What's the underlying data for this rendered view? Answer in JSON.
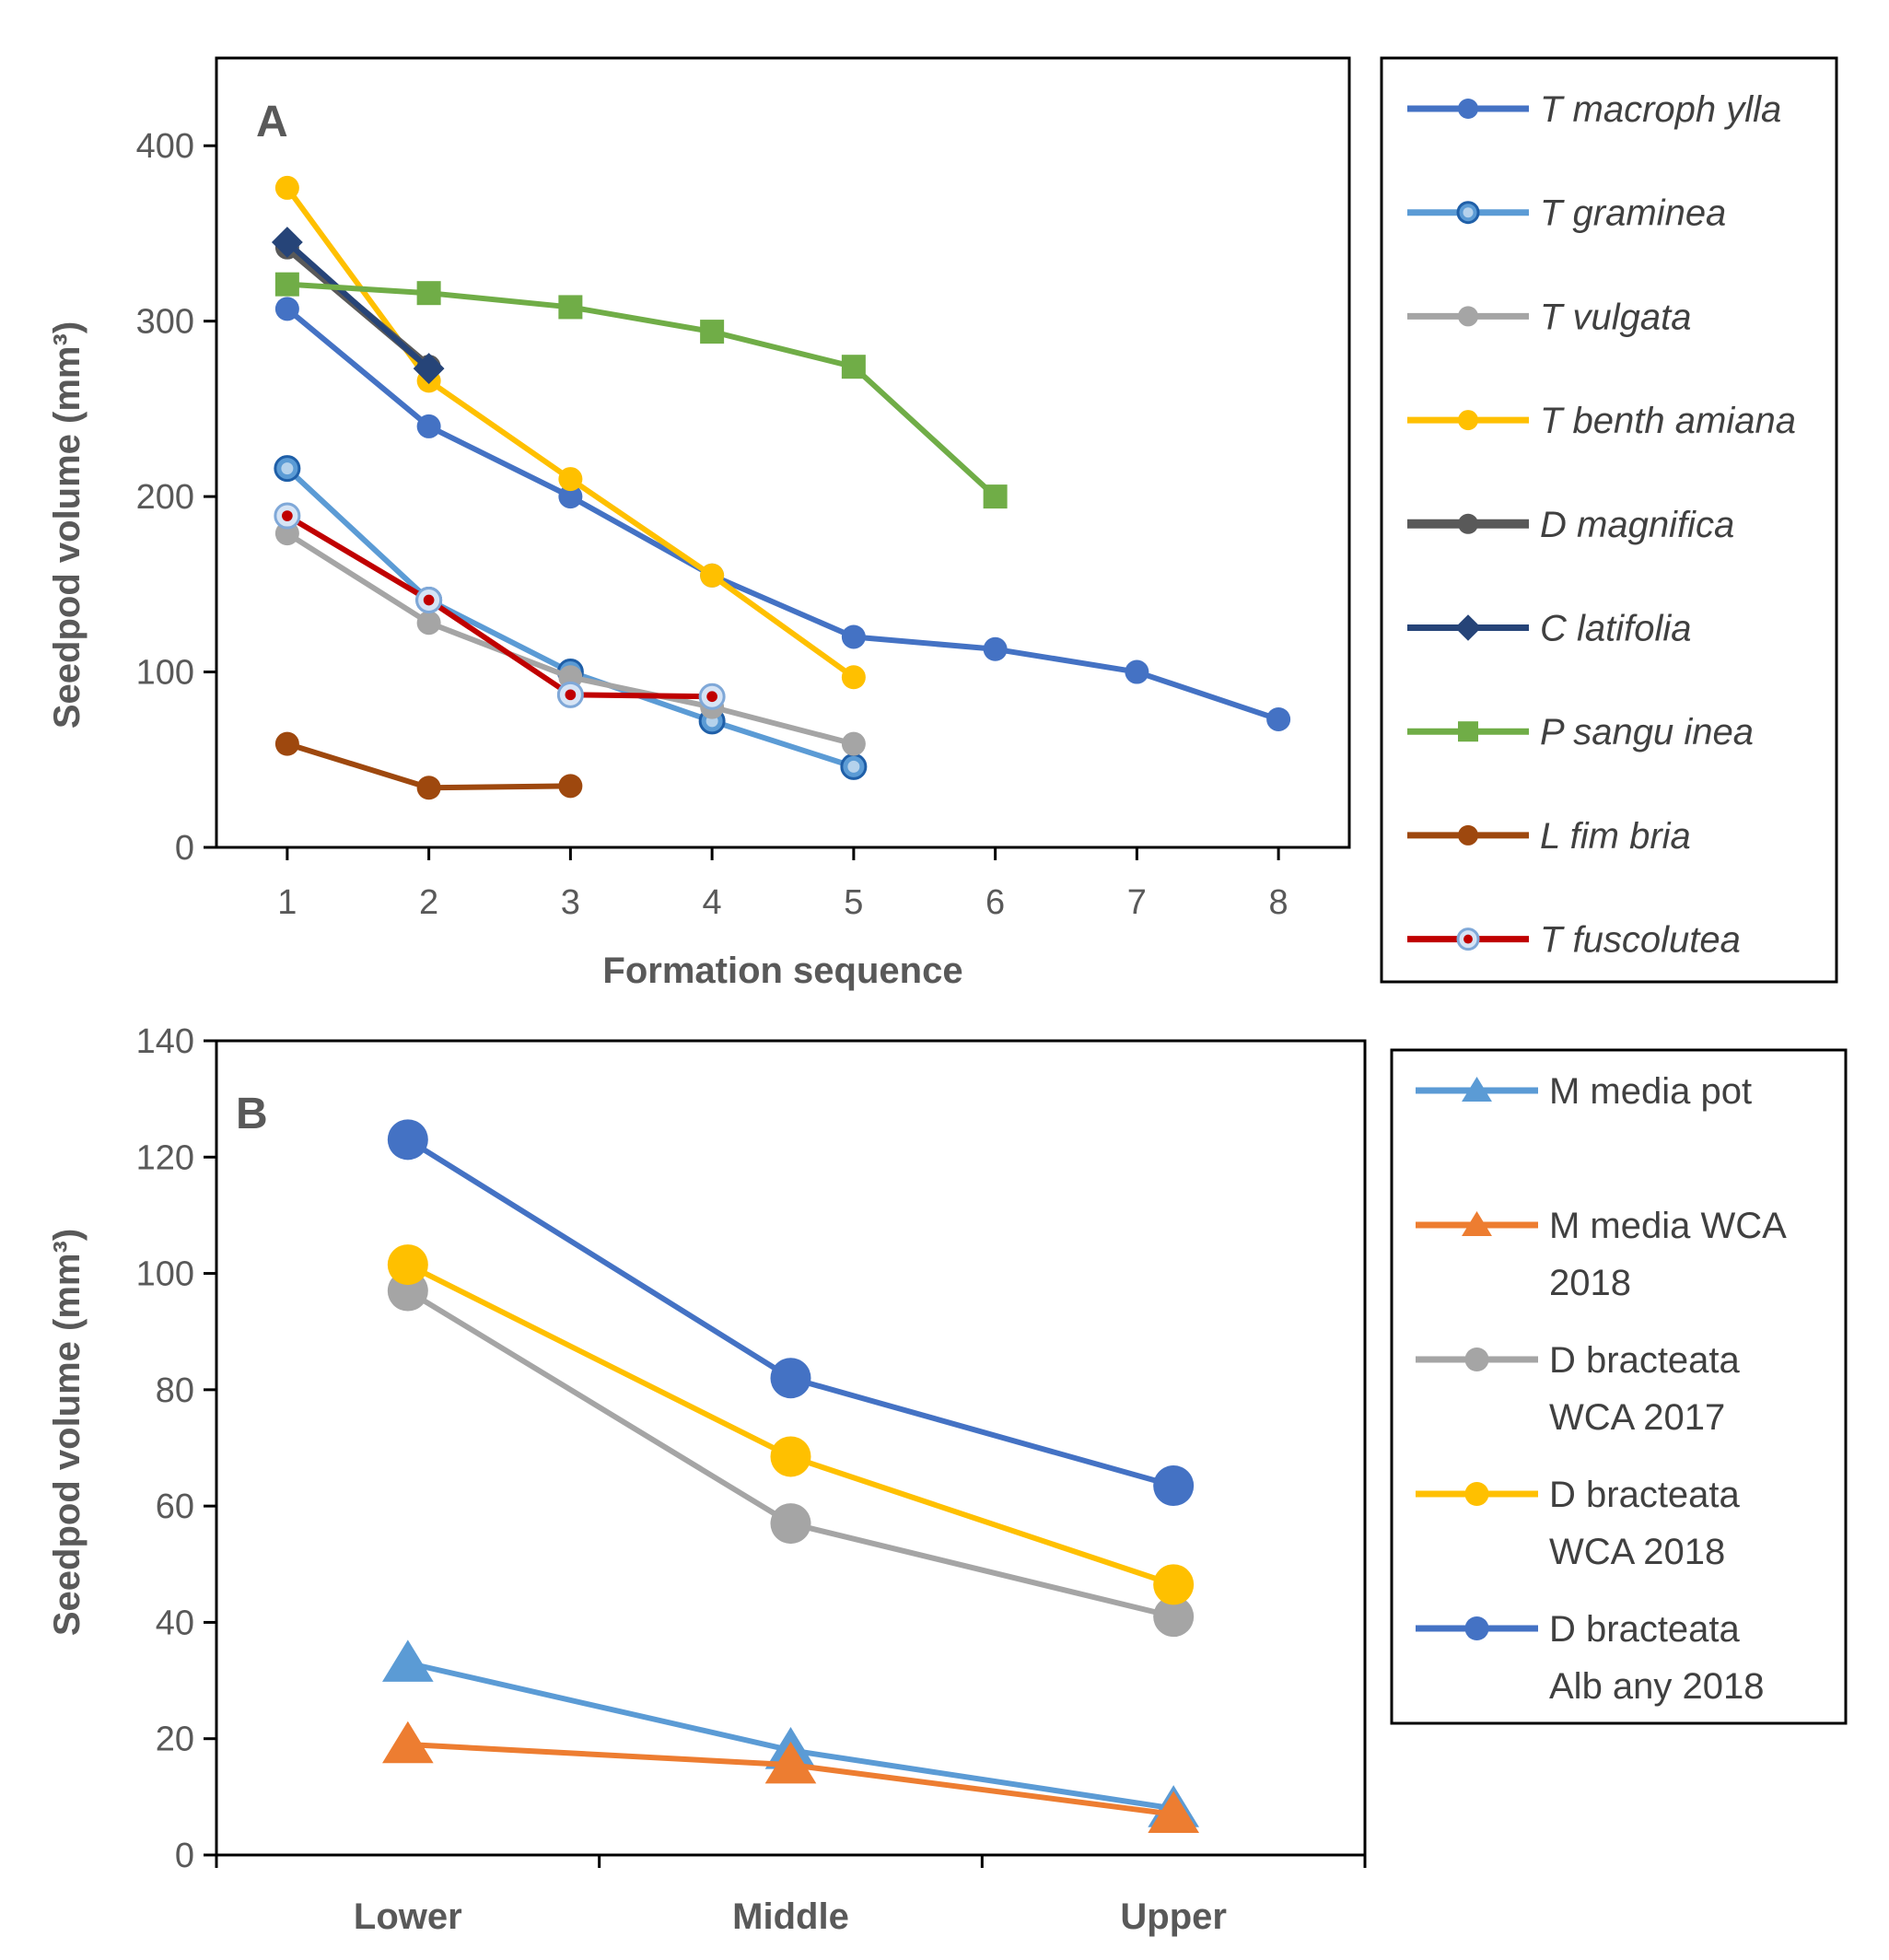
{
  "chart_data": [
    {
      "type": "line",
      "panel": "A",
      "title": "",
      "xlabel": "Formation sequence",
      "ylabel": "Seedpod volume (mm³)",
      "xlim": [
        0.5,
        8.5
      ],
      "ylim": [
        0,
        450
      ],
      "x_ticks": [
        1,
        2,
        3,
        4,
        5,
        6,
        7,
        8
      ],
      "y_ticks": [
        0,
        100,
        200,
        300,
        400
      ],
      "grid": false,
      "legend": "right",
      "series": [
        {
          "name": "T macroph ylla",
          "color": "#4472C4",
          "marker": "circle",
          "x": [
            1,
            2,
            3,
            4,
            5,
            6,
            7,
            8
          ],
          "values": [
            307,
            240,
            200,
            155,
            120,
            113,
            100,
            73
          ]
        },
        {
          "name": "T graminea",
          "color": "#5B9BD5",
          "marker": "ring",
          "x": [
            1,
            2,
            3,
            4,
            5
          ],
          "values": [
            216,
            141,
            100,
            72,
            46
          ]
        },
        {
          "name": "T vulgata",
          "color": "#A5A5A5",
          "marker": "circle",
          "x": [
            1,
            2,
            3,
            4,
            5
          ],
          "values": [
            179,
            128,
            97,
            80,
            59
          ]
        },
        {
          "name": "T benth amiana",
          "color": "#FFC000",
          "marker": "circle",
          "x": [
            1,
            2,
            3,
            4,
            5
          ],
          "values": [
            376,
            266,
            210,
            155,
            97
          ]
        },
        {
          "name": "D magnifica",
          "color": "#595959",
          "marker": "circle",
          "x": [
            1,
            2
          ],
          "values": [
            342,
            274
          ]
        },
        {
          "name": "C latifolia",
          "color": "#264478",
          "marker": "diamond",
          "x": [
            1,
            2
          ],
          "values": [
            345,
            273
          ]
        },
        {
          "name": "P sangu inea",
          "color": "#70AD47",
          "marker": "square",
          "x": [
            1,
            2,
            3,
            4,
            5,
            6
          ],
          "values": [
            321,
            316,
            308,
            294,
            274,
            200
          ]
        },
        {
          "name": "L fim bria",
          "color": "#9E480E",
          "marker": "circle",
          "x": [
            1,
            2,
            3
          ],
          "values": [
            59,
            34,
            35
          ]
        },
        {
          "name": "T fuscolutea",
          "color": "#C00000",
          "marker": "dot-ring",
          "x": [
            1,
            2,
            3,
            4
          ],
          "values": [
            189,
            141,
            87,
            86
          ]
        }
      ]
    },
    {
      "type": "line",
      "panel": "B",
      "title": "",
      "xlabel": "",
      "ylabel": "Seedpod volume (mm³)",
      "categories": [
        "Lower",
        "Middle",
        "Upper"
      ],
      "ylim": [
        0,
        140
      ],
      "y_ticks": [
        0,
        20,
        40,
        60,
        80,
        100,
        120,
        140
      ],
      "grid": false,
      "legend": "right",
      "series": [
        {
          "name": "M media pot",
          "lines": [
            "M media pot"
          ],
          "color": "#5B9BD5",
          "marker": "triangle",
          "values": [
            33,
            18,
            8
          ]
        },
        {
          "name": "M media WCA 2018",
          "lines": [
            "M media WCA",
            "2018"
          ],
          "color": "#ED7D31",
          "marker": "triangle",
          "values": [
            19,
            15.5,
            7
          ]
        },
        {
          "name": "D bracteata WCA 2017",
          "lines": [
            "D bracteata",
            "WCA 2017"
          ],
          "color": "#A5A5A5",
          "marker": "circle",
          "values": [
            97,
            57,
            41
          ]
        },
        {
          "name": "D bracteata WCA 2018",
          "lines": [
            "D bracteata",
            "WCA 2018"
          ],
          "color": "#FFC000",
          "marker": "circle",
          "values": [
            101.5,
            68.5,
            46.5
          ]
        },
        {
          "name": "D bracteata Albany 2018",
          "lines": [
            "D bracteata",
            "Alb any 2018"
          ],
          "color": "#4472C4",
          "marker": "circle",
          "values": [
            123,
            82,
            63.5
          ]
        }
      ]
    }
  ]
}
